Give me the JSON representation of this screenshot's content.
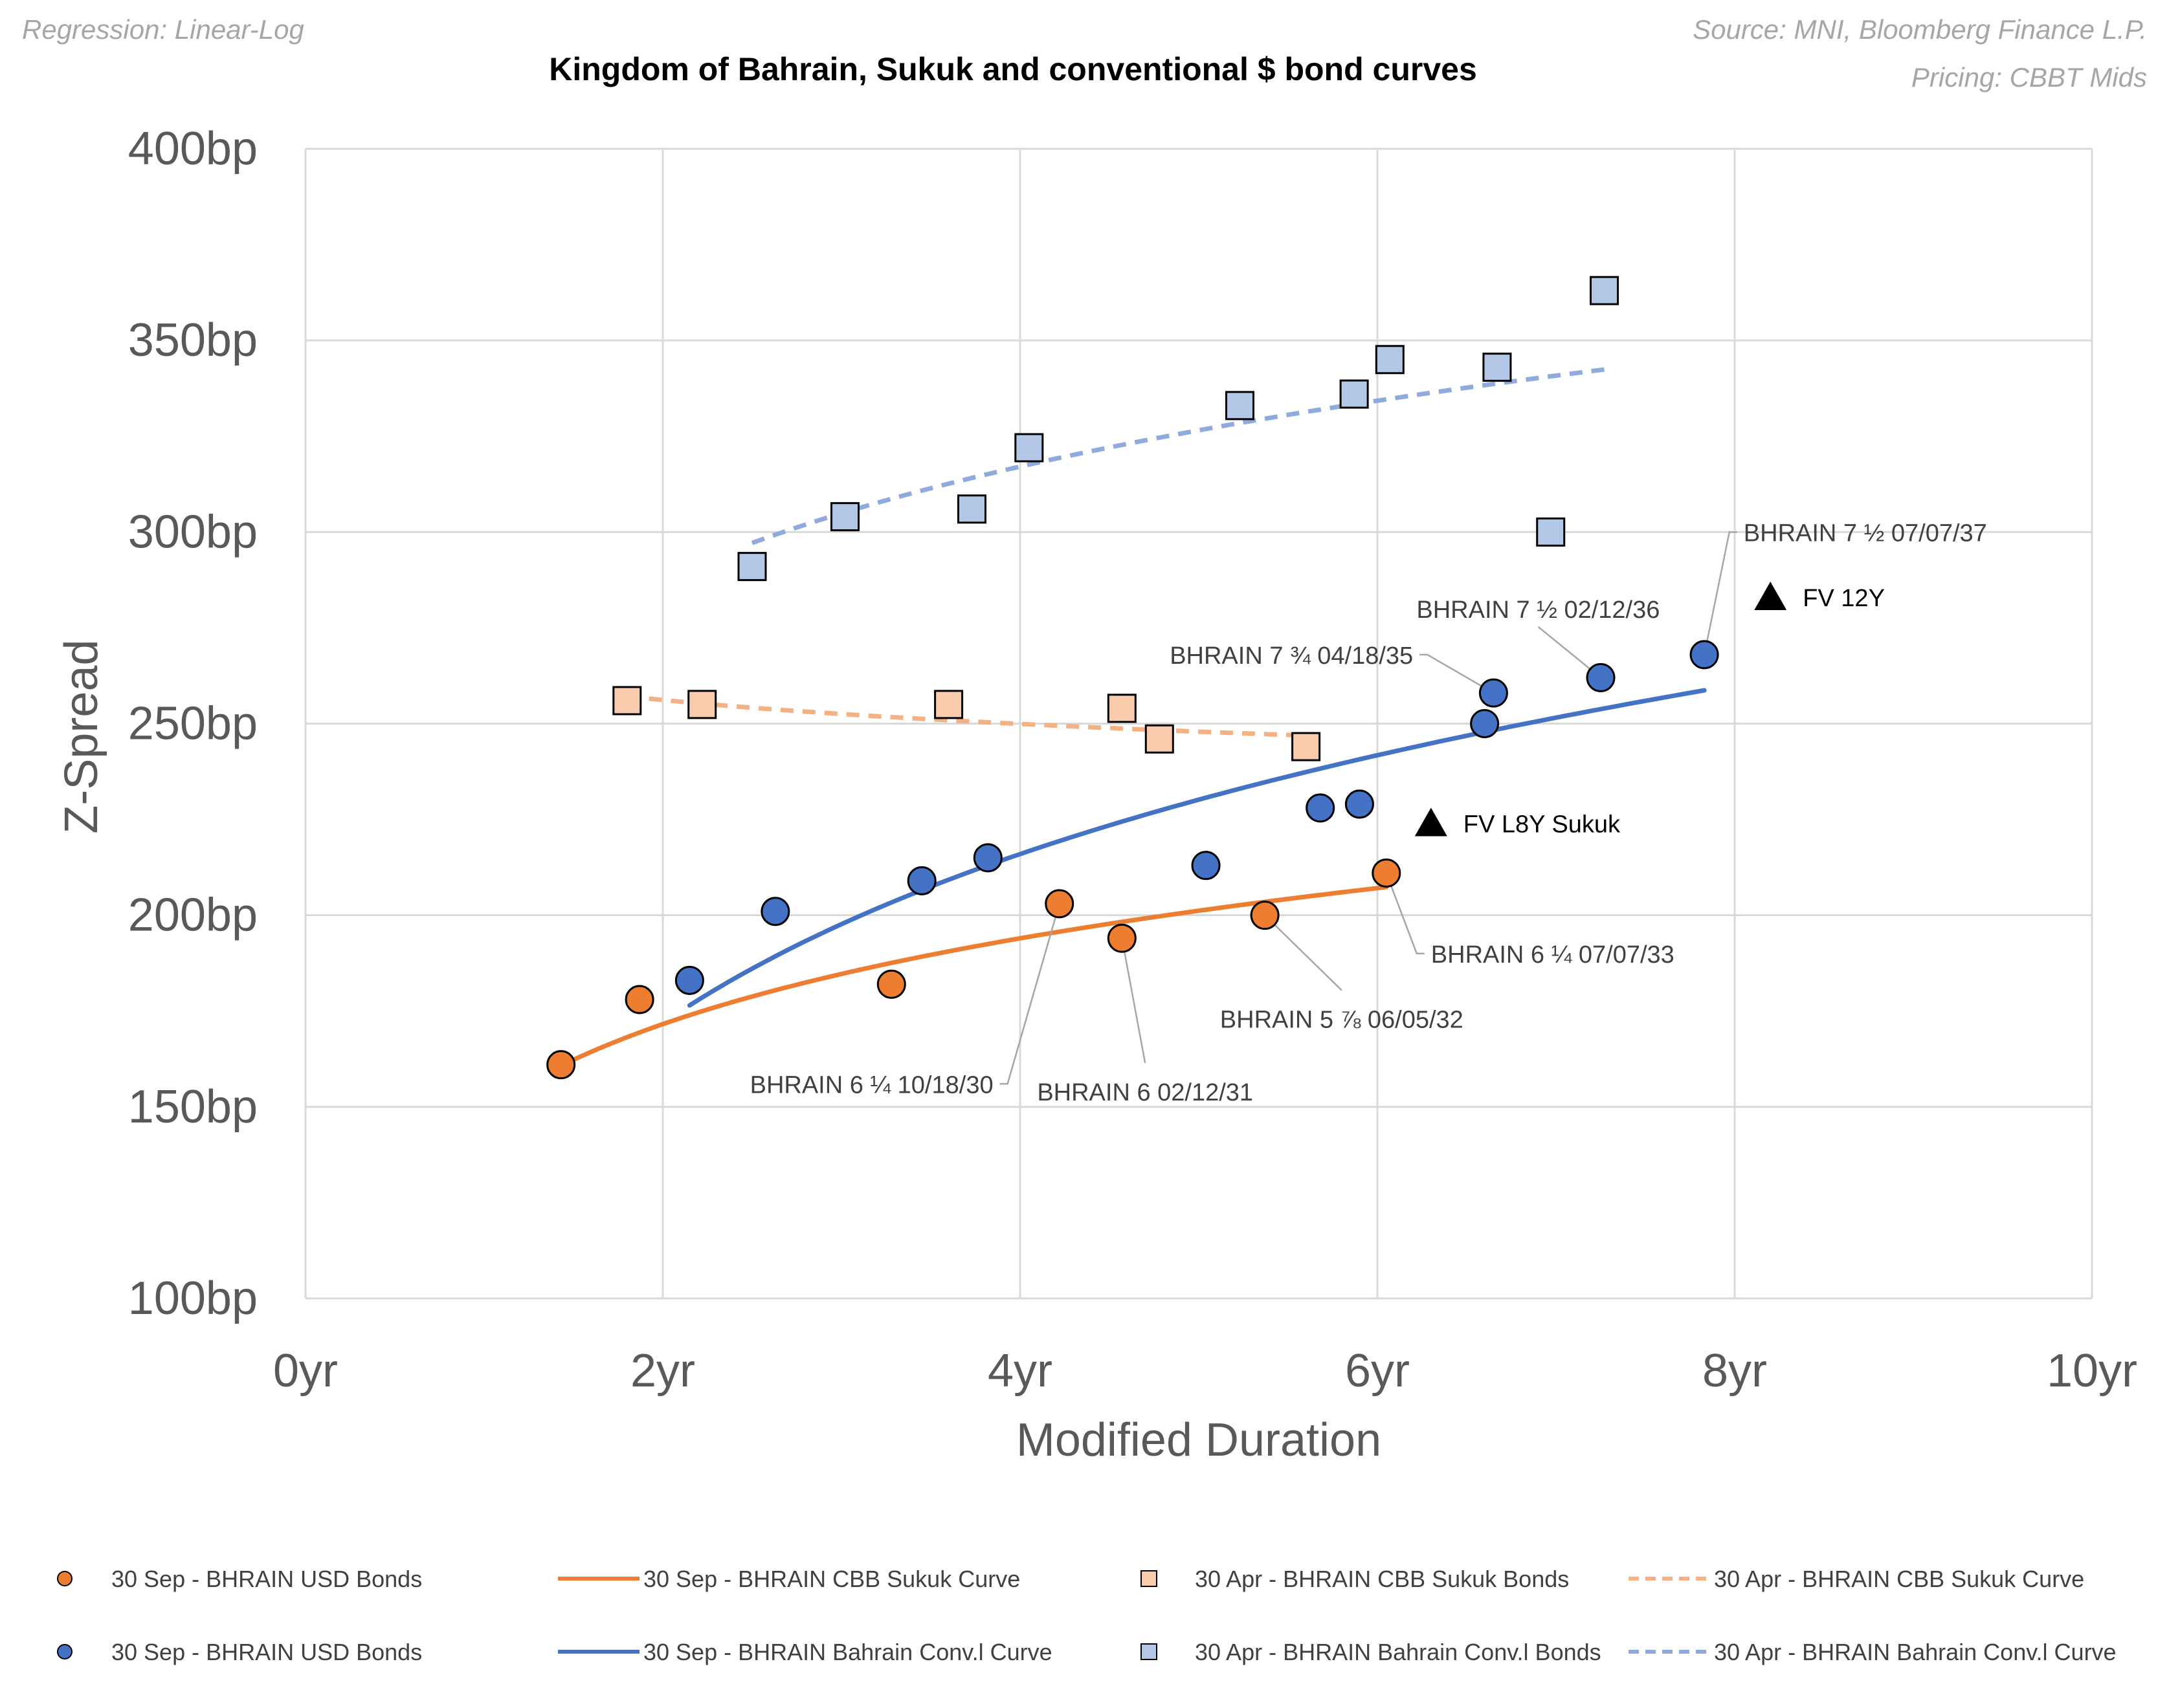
{
  "notes": {
    "regression": "Regression: Linear-Log",
    "source": "Source: MNI, Bloomberg Finance L.P.",
    "pricing": "Pricing: CBBT Mids"
  },
  "chart_data": {
    "type": "scatter",
    "title": "Kingdom of Bahrain, Sukuk and conventional $ bond curves",
    "xlabel": "Modified Duration",
    "ylabel": "Z-Spread",
    "xlim": [
      0,
      10
    ],
    "ylim": [
      100,
      400
    ],
    "xticks": [
      0,
      2,
      4,
      6,
      8,
      10
    ],
    "yticks": [
      100,
      150,
      200,
      250,
      300,
      350,
      400
    ],
    "xtick_labels": [
      "0yr",
      "2yr",
      "4yr",
      "6yr",
      "8yr",
      "10yr"
    ],
    "ytick_labels": [
      "100bp",
      "150bp",
      "200bp",
      "250bp",
      "300bp",
      "350bp",
      "400bp"
    ],
    "grid": true,
    "legend_position": "bottom",
    "colors": {
      "orange": "#ED7D31",
      "orange_light": "#F8CBAD",
      "blue": "#4472C4",
      "blue_light": "#B4C7E7",
      "grid": "#d9d9d9",
      "axis_text": "#595959"
    },
    "series": [
      {
        "name": "30 Sep - BHRAIN  USD Bonds",
        "kind": "scatter",
        "marker": "circle",
        "color": "#ED7D31",
        "points": [
          [
            1.43,
            161
          ],
          [
            1.87,
            178
          ],
          [
            3.28,
            182
          ],
          [
            4.22,
            203
          ],
          [
            4.57,
            194
          ],
          [
            5.37,
            200
          ],
          [
            6.05,
            211
          ]
        ]
      },
      {
        "name": "30 Sep - BHRAIN CBB Sukuk Curve",
        "kind": "line",
        "dash": false,
        "color": "#ED7D31",
        "fit": {
          "a": 149.2,
          "b": 32.3
        },
        "xrange": [
          1.43,
          6.05
        ]
      },
      {
        "name": "30 Apr - BHRAIN CBB Sukuk Bonds",
        "kind": "scatter",
        "marker": "square",
        "color": "#F8CBAD",
        "points": [
          [
            1.8,
            256
          ],
          [
            2.22,
            255
          ],
          [
            3.6,
            255
          ],
          [
            4.57,
            254
          ],
          [
            4.78,
            246
          ],
          [
            5.6,
            244
          ]
        ]
      },
      {
        "name": "30 Apr - BHRAIN CBB Sukuk Curve",
        "kind": "line",
        "dash": true,
        "color": "#F4B183",
        "fit": {
          "a": 262.4,
          "b": -9.0
        },
        "xrange": [
          1.8,
          5.6
        ]
      },
      {
        "name": "30 Sep - BHRAIN  USD Bonds",
        "kind": "scatter",
        "marker": "circle",
        "color": "#4472C4",
        "points": [
          [
            2.15,
            183
          ],
          [
            2.63,
            201
          ],
          [
            3.45,
            209
          ],
          [
            3.82,
            215
          ],
          [
            5.04,
            213
          ],
          [
            5.68,
            228
          ],
          [
            5.9,
            229
          ],
          [
            6.6,
            250
          ],
          [
            6.65,
            258
          ],
          [
            7.25,
            262
          ],
          [
            7.83,
            268
          ]
        ]
      },
      {
        "name": "30 Sep - BHRAIN Bahrain Conv.l Curve",
        "kind": "line",
        "dash": false,
        "color": "#4472C4",
        "fit": {
          "a": 127.8,
          "b": 63.6
        },
        "xrange": [
          2.15,
          7.83
        ]
      },
      {
        "name": "30 Apr - BHRAIN Bahrain Conv.l Bonds",
        "kind": "scatter",
        "marker": "square",
        "color": "#B4C7E7",
        "points": [
          [
            2.5,
            291
          ],
          [
            3.02,
            304
          ],
          [
            3.73,
            306
          ],
          [
            4.05,
            322
          ],
          [
            5.23,
            333
          ],
          [
            5.87,
            336
          ],
          [
            6.07,
            345
          ],
          [
            6.67,
            343
          ],
          [
            6.97,
            300
          ],
          [
            7.27,
            363
          ]
        ]
      },
      {
        "name": "30 Apr - BHRAIN Bahrain Conv.l Curve",
        "kind": "line",
        "dash": true,
        "color": "#8FAADC",
        "fit": {
          "a": 258.3,
          "b": 42.4
        },
        "xrange": [
          2.5,
          7.27
        ]
      }
    ],
    "fair_values": [
      {
        "label": "FV 12Y",
        "x": 8.2,
        "y": 283
      },
      {
        "label": "FV L8Y Sukuk",
        "x": 6.3,
        "y": 224
      }
    ],
    "annotations": [
      {
        "label": "BHRAIN 7 ½ 07/07/37",
        "x": 7.83,
        "y": 268,
        "anchor": "start",
        "label_x": 8.05,
        "label_y": 300
      },
      {
        "label": "BHRAIN 7 ½ 02/12/36",
        "x": 7.25,
        "y": 262,
        "anchor": "middle",
        "label_x": 6.9,
        "label_y": 280
      },
      {
        "label": "BHRAIN 7 ¾ 04/18/35",
        "x": 6.65,
        "y": 258,
        "anchor": "end",
        "label_x": 6.2,
        "label_y": 268
      },
      {
        "label": "BHRAIN 6 ¼ 07/07/33",
        "x": 6.05,
        "y": 211,
        "anchor": "start",
        "label_x": 6.3,
        "label_y": 190
      },
      {
        "label": "BHRAIN 5 ⅞ 06/05/32",
        "x": 5.37,
        "y": 200,
        "anchor": "middle",
        "label_x": 5.8,
        "label_y": 173
      },
      {
        "label": "BHRAIN 6 02/12/31",
        "x": 4.57,
        "y": 194,
        "anchor": "middle",
        "label_x": 4.7,
        "label_y": 154
      },
      {
        "label": "BHRAIN 6 ¼ 10/18/30",
        "x": 4.22,
        "y": 203,
        "anchor": "end",
        "label_x": 3.85,
        "label_y": 156
      }
    ]
  }
}
